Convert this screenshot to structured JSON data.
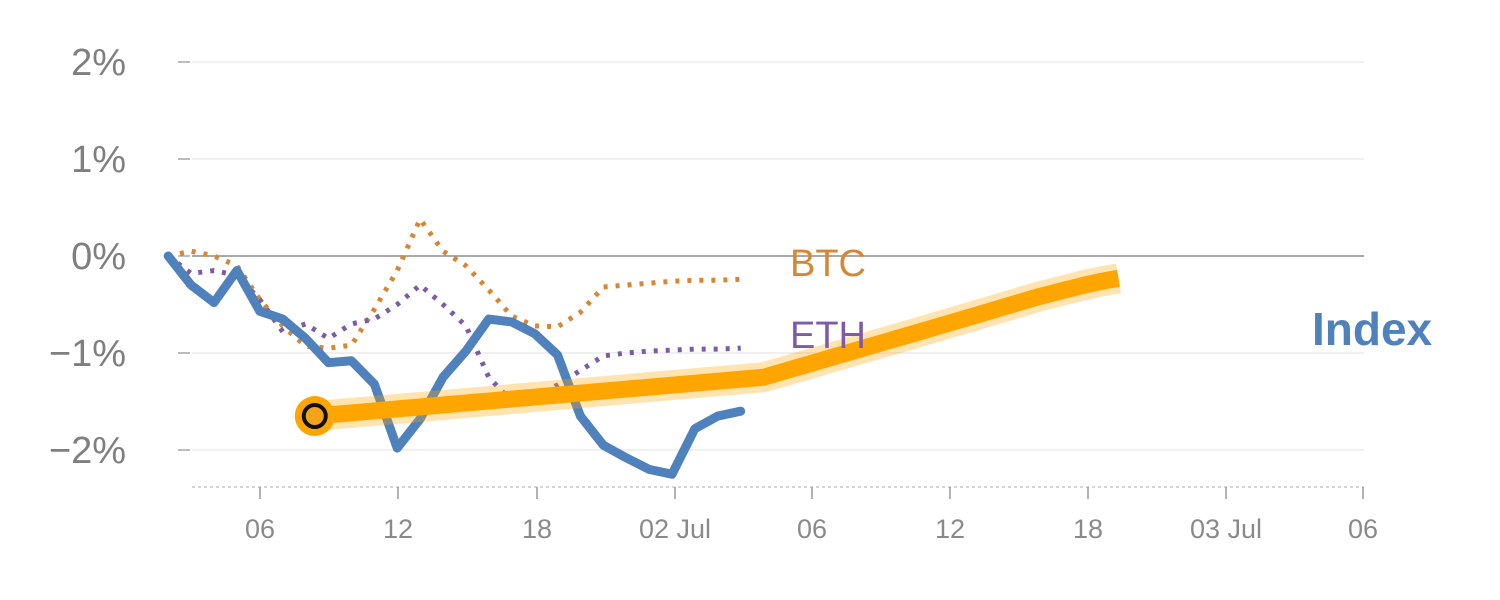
{
  "chart_data": {
    "type": "line",
    "y_unit": "%",
    "ylim": [
      -2.4,
      2.1
    ],
    "y_ticks": [
      2,
      1,
      0,
      -1,
      -2
    ],
    "y_tick_labels": [
      "2%",
      "1%",
      "0%",
      "−1%",
      "−2%"
    ],
    "x_tick_labels": [
      "06",
      "12",
      "18",
      "02 Jul",
      "06",
      "12",
      "18",
      "03 Jul",
      "06"
    ],
    "grid": true,
    "zero_line": true,
    "series": [
      {
        "name": "BTC",
        "style": "dotted",
        "color": "#d98634",
        "x": [
          -2,
          -1,
          0,
          1,
          2,
          3,
          4,
          5,
          6,
          7,
          8,
          9,
          10,
          11,
          12,
          13,
          14,
          15,
          16,
          17,
          18,
          19,
          20,
          21,
          22,
          23
        ],
        "y": [
          0.0,
          0.05,
          0.0,
          -0.1,
          -0.45,
          -0.72,
          -0.93,
          -0.95,
          -0.92,
          -0.55,
          -0.15,
          0.38,
          0.05,
          -0.1,
          -0.35,
          -0.62,
          -0.72,
          -0.73,
          -0.58,
          -0.32,
          -0.3,
          -0.28,
          -0.26,
          -0.25,
          -0.25,
          -0.24
        ]
      },
      {
        "name": "ETH",
        "style": "dotted",
        "color": "#7d5ba6",
        "x": [
          -2,
          -1,
          0,
          1,
          2,
          3,
          4,
          5,
          6,
          7,
          8,
          9,
          10,
          11,
          12,
          13,
          14,
          15,
          16,
          17,
          18,
          19,
          20,
          21,
          22,
          23
        ],
        "y": [
          0.0,
          -0.18,
          -0.15,
          -0.2,
          -0.45,
          -0.78,
          -0.7,
          -0.85,
          -0.7,
          -0.65,
          -0.5,
          -0.3,
          -0.5,
          -0.72,
          -1.25,
          -1.5,
          -1.45,
          -1.33,
          -1.18,
          -1.03,
          -1.0,
          -0.98,
          -0.97,
          -0.96,
          -0.96,
          -0.95
        ]
      },
      {
        "name": "Index",
        "style": "solid",
        "color": "#4f81bd",
        "x": [
          -2,
          -1,
          0,
          1,
          2,
          3,
          4,
          5,
          6,
          7,
          8,
          9,
          10,
          11,
          12,
          13,
          14,
          15,
          16,
          17,
          18,
          19,
          20,
          21,
          22,
          23
        ],
        "y": [
          0.0,
          -0.3,
          -0.48,
          -0.15,
          -0.57,
          -0.65,
          -0.85,
          -1.1,
          -1.08,
          -1.32,
          -1.98,
          -1.68,
          -1.25,
          -0.98,
          -0.65,
          -0.68,
          -0.8,
          -1.02,
          -1.65,
          -1.95,
          -2.08,
          -2.2,
          -2.25,
          -1.78,
          -1.65,
          -1.6
        ]
      }
    ],
    "forecast": {
      "color": "#ffa500",
      "x": [
        4.4,
        24,
        32,
        36,
        38,
        39,
        39.5
      ],
      "y": [
        -1.65,
        -1.25,
        -0.7,
        -0.42,
        -0.3,
        -0.25,
        -0.23
      ]
    },
    "current_point": {
      "x": 4.4,
      "y": -1.65
    }
  }
}
